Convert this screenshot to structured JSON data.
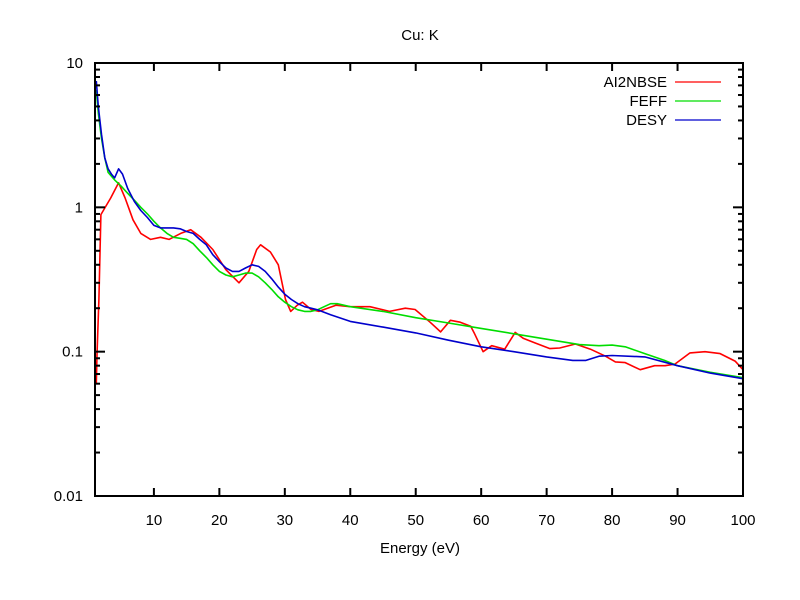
{
  "chart_data": {
    "type": "line",
    "title": "Cu: K",
    "xlabel": "Energy (eV)",
    "ylabel": "",
    "xlim": [
      1,
      100
    ],
    "ylim": [
      0.01,
      10
    ],
    "yscale": "log",
    "xticks": [
      10,
      20,
      30,
      40,
      50,
      60,
      70,
      80,
      90,
      100
    ],
    "xtick_labels": [
      "10",
      "20",
      "30",
      "40",
      "50",
      "60",
      "70",
      "80",
      "90",
      "100"
    ],
    "yticks": [
      0.01,
      0.1,
      1,
      10
    ],
    "ytick_labels": [
      "0.01",
      "0.1",
      "1",
      "10"
    ],
    "grid": false,
    "legend_position": "top-right",
    "series": [
      {
        "name": "AI2NBSE",
        "color": "#ff0000",
        "x": [
          1.2,
          1.3,
          1.6,
          1.9,
          2.5,
          3.4,
          4.6,
          5.6,
          6.8,
          8,
          9.5,
          11,
          12.3,
          14.1,
          15.6,
          17.2,
          19,
          21,
          23,
          24.5,
          25.7,
          26.3,
          27.8,
          29,
          30.1,
          30.9,
          31.9,
          32.7,
          34,
          35.2,
          37.8,
          40,
          43,
          46,
          48.4,
          49.9,
          52.2,
          53.8,
          55.3,
          56.8,
          58.4,
          59,
          60.3,
          61.6,
          63.6,
          65.2,
          66.4,
          68.2,
          70.5,
          72,
          74.4,
          76.7,
          79,
          80.5,
          82,
          84.3,
          86.5,
          88.1,
          89.6,
          91.9,
          94.2,
          96.5,
          98.8,
          100
        ],
        "y": [
          0.06,
          0.095,
          0.23,
          0.89,
          0.99,
          1.16,
          1.48,
          1.16,
          0.82,
          0.66,
          0.6,
          0.62,
          0.6,
          0.66,
          0.7,
          0.62,
          0.51,
          0.37,
          0.3,
          0.36,
          0.51,
          0.55,
          0.49,
          0.4,
          0.23,
          0.19,
          0.21,
          0.22,
          0.196,
          0.19,
          0.21,
          0.205,
          0.205,
          0.19,
          0.2,
          0.196,
          0.16,
          0.137,
          0.165,
          0.16,
          0.15,
          0.133,
          0.1,
          0.11,
          0.104,
          0.136,
          0.124,
          0.115,
          0.105,
          0.106,
          0.113,
          0.104,
          0.093,
          0.085,
          0.084,
          0.075,
          0.08,
          0.08,
          0.082,
          0.098,
          0.1,
          0.097,
          0.086,
          0.075
        ]
      },
      {
        "name": "FEFF",
        "color": "#00dd00",
        "x": [
          1.2,
          1.5,
          2,
          2.5,
          3,
          4,
          5,
          6,
          7,
          8,
          9,
          10,
          11,
          12,
          13,
          14,
          15,
          16,
          17,
          18,
          19,
          20,
          21,
          22,
          23,
          24,
          25,
          26,
          27,
          28,
          29,
          30,
          31,
          32,
          33,
          34,
          35,
          36,
          37,
          38,
          40,
          45,
          50,
          55,
          60,
          65,
          70,
          75,
          78,
          80,
          82,
          85,
          88,
          90,
          95,
          100
        ],
        "y": [
          6.5,
          4.5,
          3.0,
          2.2,
          1.75,
          1.55,
          1.4,
          1.25,
          1.12,
          1.0,
          0.9,
          0.8,
          0.72,
          0.66,
          0.62,
          0.61,
          0.6,
          0.56,
          0.5,
          0.45,
          0.4,
          0.36,
          0.34,
          0.33,
          0.34,
          0.35,
          0.35,
          0.33,
          0.3,
          0.27,
          0.24,
          0.22,
          0.205,
          0.195,
          0.19,
          0.19,
          0.195,
          0.205,
          0.215,
          0.215,
          0.205,
          0.19,
          0.172,
          0.158,
          0.145,
          0.133,
          0.122,
          0.112,
          0.11,
          0.111,
          0.108,
          0.097,
          0.087,
          0.08,
          0.072,
          0.066
        ]
      },
      {
        "name": "DESY",
        "color": "#0000cc",
        "x": [
          1.2,
          1.5,
          2,
          2.5,
          3,
          3.5,
          4,
          4.6,
          5.2,
          6,
          7,
          8,
          9,
          10,
          11,
          12,
          13,
          14,
          15,
          16,
          17,
          18,
          19,
          20,
          21,
          22,
          23,
          24,
          25,
          26,
          27,
          28,
          29,
          30,
          31,
          32,
          33,
          34,
          35,
          37,
          40,
          45,
          50,
          55,
          60,
          65,
          70,
          74,
          76,
          78,
          80,
          85,
          90,
          95,
          100
        ],
        "y": [
          7.5,
          5.0,
          3.2,
          2.2,
          1.85,
          1.7,
          1.6,
          1.85,
          1.7,
          1.35,
          1.1,
          0.95,
          0.85,
          0.75,
          0.72,
          0.72,
          0.72,
          0.71,
          0.68,
          0.66,
          0.6,
          0.55,
          0.47,
          0.42,
          0.38,
          0.36,
          0.36,
          0.38,
          0.4,
          0.39,
          0.36,
          0.32,
          0.28,
          0.25,
          0.23,
          0.215,
          0.205,
          0.2,
          0.195,
          0.18,
          0.162,
          0.148,
          0.135,
          0.12,
          0.108,
          0.1,
          0.092,
          0.087,
          0.087,
          0.093,
          0.094,
          0.092,
          0.08,
          0.071,
          0.065
        ]
      }
    ]
  }
}
